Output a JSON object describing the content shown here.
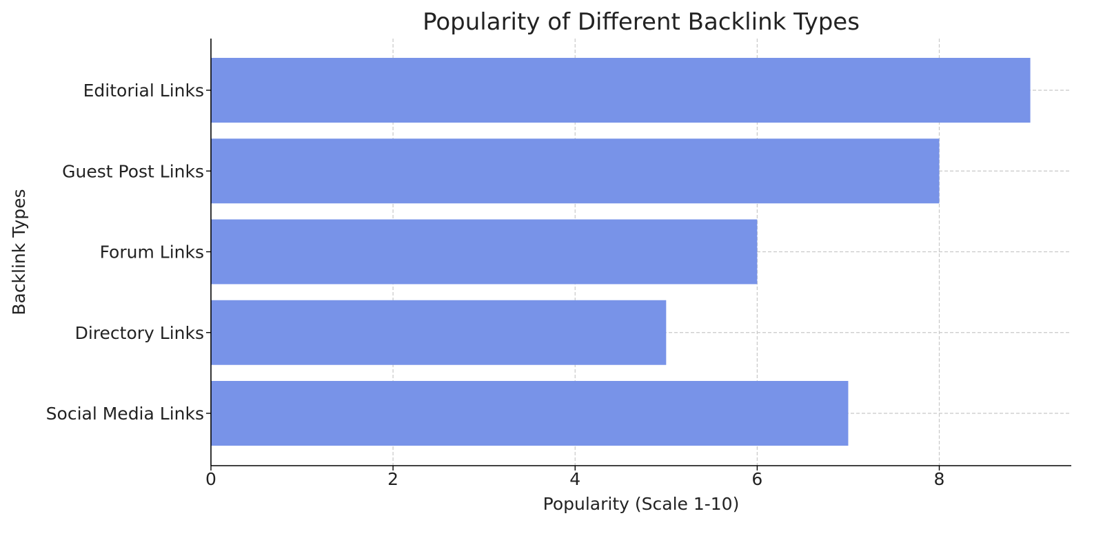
{
  "chart_data": {
    "type": "bar",
    "orientation": "horizontal",
    "title": "Popularity of Different Backlink Types",
    "xlabel": "Popularity (Scale 1-10)",
    "ylabel": "Backlink Types",
    "categories": [
      "Editorial Links",
      "Guest Post Links",
      "Forum Links",
      "Directory Links",
      "Social Media Links"
    ],
    "values": [
      9,
      8,
      6,
      5,
      7
    ],
    "xlim": [
      0,
      9.45
    ],
    "xticks": [
      0,
      2,
      4,
      6,
      8
    ],
    "xtick_labels": [
      "0",
      "2",
      "4",
      "6",
      "8"
    ],
    "grid": true,
    "grid_style": "dashed",
    "bar_color": "#7893E8",
    "grid_color": "#c8c8c8",
    "axis_color": "#000000"
  }
}
